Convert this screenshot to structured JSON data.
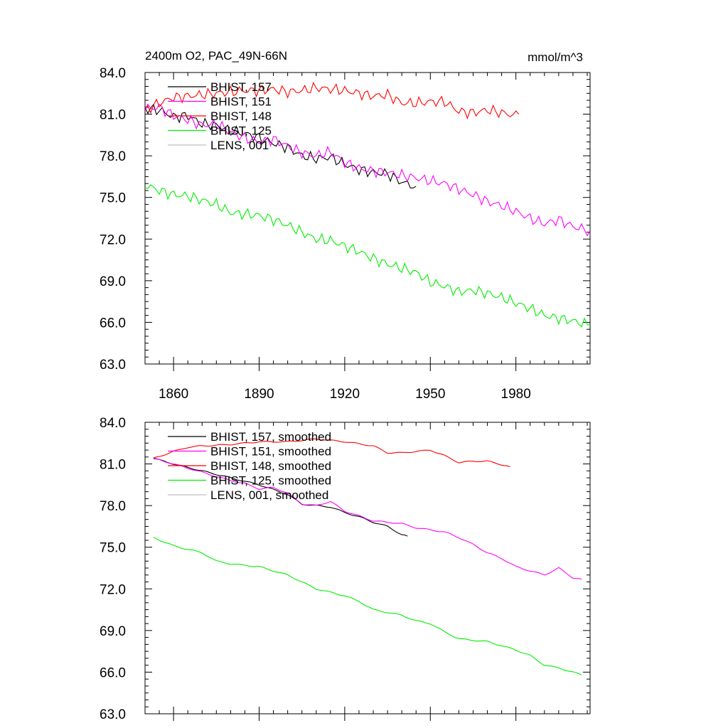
{
  "page": {
    "title_left": "2400m O2, PAC_49N-66N",
    "title_right": "mmol/m^3"
  },
  "colors": {
    "BHIST_157": "#000000",
    "BHIST_151": "#ff00ff",
    "BHIST_148": "#ff0000",
    "BHIST_125": "#00ee00",
    "LENS_001": "#bfbfbf"
  },
  "chart_data": [
    {
      "type": "line",
      "panel": "top",
      "ylim": [
        63.0,
        84.0
      ],
      "xlim": [
        1850,
        2006
      ],
      "y_ticks": [
        "63.0",
        "66.0",
        "69.0",
        "72.0",
        "75.0",
        "78.0",
        "81.0",
        "84.0"
      ],
      "x_ticks": [
        "1860",
        "1890",
        "1920",
        "1950",
        "1980"
      ],
      "legend": [
        "BHIST, 157",
        "BHIST, 151",
        "BHIST, 148",
        "BHIST, 125",
        "LENS, 001"
      ],
      "series": [
        {
          "name": "BHIST, 157",
          "color": "#000000",
          "x_start": 1850,
          "x_end": 1945,
          "points": [
            [
              1850,
              81.4
            ],
            [
              1855,
              81.3
            ],
            [
              1860,
              80.8
            ],
            [
              1865,
              80.9
            ],
            [
              1870,
              80.3
            ],
            [
              1875,
              80.2
            ],
            [
              1880,
              79.8
            ],
            [
              1885,
              79.6
            ],
            [
              1890,
              79.3
            ],
            [
              1895,
              78.9
            ],
            [
              1900,
              78.6
            ],
            [
              1905,
              78.0
            ],
            [
              1910,
              77.8
            ],
            [
              1915,
              77.9
            ],
            [
              1920,
              77.4
            ],
            [
              1925,
              77.0
            ],
            [
              1930,
              76.8
            ],
            [
              1935,
              76.7
            ],
            [
              1940,
              76.1
            ],
            [
              1945,
              75.8
            ]
          ]
        },
        {
          "name": "BHIST, 151",
          "color": "#ff00ff",
          "x_start": 1850,
          "x_end": 2006,
          "points": [
            [
              1850,
              81.4
            ],
            [
              1855,
              81.5
            ],
            [
              1860,
              80.9
            ],
            [
              1865,
              80.6
            ],
            [
              1870,
              80.2
            ],
            [
              1875,
              80.3
            ],
            [
              1880,
              79.7
            ],
            [
              1885,
              79.3
            ],
            [
              1890,
              79.0
            ],
            [
              1895,
              79.2
            ],
            [
              1900,
              78.7
            ],
            [
              1905,
              78.2
            ],
            [
              1910,
              78.0
            ],
            [
              1915,
              78.3
            ],
            [
              1920,
              77.5
            ],
            [
              1925,
              77.1
            ],
            [
              1930,
              76.9
            ],
            [
              1935,
              76.8
            ],
            [
              1940,
              76.6
            ],
            [
              1945,
              76.4
            ],
            [
              1950,
              76.2
            ],
            [
              1955,
              76.0
            ],
            [
              1960,
              75.6
            ],
            [
              1965,
              75.2
            ],
            [
              1970,
              74.7
            ],
            [
              1975,
              74.4
            ],
            [
              1980,
              74.0
            ],
            [
              1985,
              73.5
            ],
            [
              1990,
              73.1
            ],
            [
              1995,
              73.4
            ],
            [
              2000,
              72.9
            ],
            [
              2006,
              72.6
            ]
          ]
        },
        {
          "name": "BHIST, 148",
          "color": "#ff0000",
          "x_start": 1850,
          "x_end": 1981,
          "points": [
            [
              1850,
              81.3
            ],
            [
              1855,
              81.8
            ],
            [
              1860,
              82.2
            ],
            [
              1865,
              82.3
            ],
            [
              1870,
              82.4
            ],
            [
              1875,
              82.5
            ],
            [
              1880,
              82.6
            ],
            [
              1885,
              82.7
            ],
            [
              1890,
              82.7
            ],
            [
              1895,
              82.8
            ],
            [
              1900,
              82.6
            ],
            [
              1905,
              82.7
            ],
            [
              1910,
              82.9
            ],
            [
              1915,
              82.8
            ],
            [
              1920,
              82.7
            ],
            [
              1925,
              82.5
            ],
            [
              1930,
              82.3
            ],
            [
              1935,
              82.4
            ],
            [
              1940,
              81.8
            ],
            [
              1945,
              81.8
            ],
            [
              1950,
              81.9
            ],
            [
              1955,
              81.9
            ],
            [
              1960,
              81.2
            ],
            [
              1965,
              81.1
            ],
            [
              1970,
              81.3
            ],
            [
              1975,
              81.1
            ],
            [
              1980,
              80.9
            ],
            [
              1981,
              81.0
            ]
          ]
        },
        {
          "name": "BHIST, 125",
          "color": "#00ee00",
          "x_start": 1850,
          "x_end": 2006,
          "points": [
            [
              1850,
              75.9
            ],
            [
              1855,
              75.5
            ],
            [
              1860,
              75.2
            ],
            [
              1865,
              75.1
            ],
            [
              1870,
              74.8
            ],
            [
              1875,
              74.5
            ],
            [
              1880,
              73.9
            ],
            [
              1885,
              73.8
            ],
            [
              1890,
              73.7
            ],
            [
              1895,
              73.4
            ],
            [
              1900,
              73.0
            ],
            [
              1905,
              72.5
            ],
            [
              1910,
              72.0
            ],
            [
              1915,
              71.9
            ],
            [
              1920,
              71.5
            ],
            [
              1925,
              71.1
            ],
            [
              1930,
              70.6
            ],
            [
              1935,
              70.2
            ],
            [
              1940,
              69.9
            ],
            [
              1945,
              69.6
            ],
            [
              1950,
              68.9
            ],
            [
              1955,
              68.6
            ],
            [
              1960,
              68.2
            ],
            [
              1965,
              68.3
            ],
            [
              1970,
              68.1
            ],
            [
              1975,
              67.8
            ],
            [
              1980,
              67.4
            ],
            [
              1985,
              67.0
            ],
            [
              1990,
              66.5
            ],
            [
              1995,
              66.3
            ],
            [
              2000,
              66.1
            ],
            [
              2006,
              65.8
            ]
          ]
        },
        {
          "name": "LENS, 001",
          "color": "#bfbfbf",
          "x_start": null,
          "x_end": null,
          "points": []
        }
      ]
    },
    {
      "type": "line",
      "panel": "bottom",
      "ylim": [
        63.0,
        84.0
      ],
      "xlim": [
        1850,
        2006
      ],
      "y_ticks": [
        "63.0",
        "66.0",
        "69.0",
        "72.0",
        "75.0",
        "78.0",
        "81.0",
        "84.0"
      ],
      "legend": [
        "BHIST, 157, smoothed",
        "BHIST, 151, smoothed",
        "BHIST, 148, smoothed",
        "BHIST, 125, smoothed",
        "LENS, 001, smoothed"
      ],
      "series": [
        {
          "name": "BHIST, 157, smoothed",
          "color": "#000000",
          "x_start": 1853,
          "x_end": 1942,
          "points": [
            [
              1853,
              81.4
            ],
            [
              1860,
              81.0
            ],
            [
              1870,
              80.5
            ],
            [
              1880,
              80.0
            ],
            [
              1890,
              79.5
            ],
            [
              1900,
              78.8
            ],
            [
              1905,
              78.1
            ],
            [
              1910,
              78.0
            ],
            [
              1915,
              77.9
            ],
            [
              1920,
              77.5
            ],
            [
              1925,
              77.2
            ],
            [
              1930,
              76.8
            ],
            [
              1935,
              76.5
            ],
            [
              1940,
              75.9
            ],
            [
              1942,
              75.8
            ]
          ]
        },
        {
          "name": "BHIST, 151, smoothed",
          "color": "#ff00ff",
          "x_start": 1853,
          "x_end": 2003,
          "points": [
            [
              1853,
              81.4
            ],
            [
              1860,
              81.0
            ],
            [
              1870,
              80.4
            ],
            [
              1880,
              79.8
            ],
            [
              1885,
              79.6
            ],
            [
              1890,
              79.2
            ],
            [
              1895,
              79.3
            ],
            [
              1900,
              78.9
            ],
            [
              1905,
              78.1
            ],
            [
              1910,
              78.0
            ],
            [
              1915,
              78.3
            ],
            [
              1920,
              77.6
            ],
            [
              1930,
              76.9
            ],
            [
              1940,
              76.7
            ],
            [
              1945,
              76.4
            ],
            [
              1955,
              76.1
            ],
            [
              1960,
              75.7
            ],
            [
              1965,
              75.2
            ],
            [
              1970,
              74.6
            ],
            [
              1975,
              74.2
            ],
            [
              1980,
              73.6
            ],
            [
              1985,
              73.3
            ],
            [
              1990,
              73.0
            ],
            [
              1995,
              73.5
            ],
            [
              2000,
              72.8
            ],
            [
              2003,
              72.7
            ]
          ]
        },
        {
          "name": "BHIST, 148, smoothed",
          "color": "#ff0000",
          "x_start": 1853,
          "x_end": 1978,
          "points": [
            [
              1853,
              81.4
            ],
            [
              1860,
              81.9
            ],
            [
              1865,
              82.2
            ],
            [
              1870,
              82.3
            ],
            [
              1880,
              82.4
            ],
            [
              1890,
              82.6
            ],
            [
              1900,
              82.6
            ],
            [
              1910,
              82.8
            ],
            [
              1920,
              82.6
            ],
            [
              1930,
              82.3
            ],
            [
              1935,
              81.8
            ],
            [
              1940,
              81.8
            ],
            [
              1950,
              82.0
            ],
            [
              1955,
              81.6
            ],
            [
              1960,
              81.1
            ],
            [
              1965,
              81.2
            ],
            [
              1970,
              81.2
            ],
            [
              1978,
              80.8
            ]
          ]
        },
        {
          "name": "BHIST, 125, smoothed",
          "color": "#00ee00",
          "x_start": 1853,
          "x_end": 2003,
          "points": [
            [
              1853,
              75.7
            ],
            [
              1860,
              75.1
            ],
            [
              1870,
              74.6
            ],
            [
              1875,
              74.0
            ],
            [
              1880,
              73.8
            ],
            [
              1890,
              73.6
            ],
            [
              1900,
              73.0
            ],
            [
              1905,
              72.5
            ],
            [
              1910,
              72.0
            ],
            [
              1920,
              71.5
            ],
            [
              1925,
              71.1
            ],
            [
              1930,
              70.5
            ],
            [
              1940,
              70.1
            ],
            [
              1945,
              69.7
            ],
            [
              1950,
              69.5
            ],
            [
              1955,
              68.9
            ],
            [
              1960,
              68.4
            ],
            [
              1965,
              68.3
            ],
            [
              1970,
              68.2
            ],
            [
              1980,
              67.6
            ],
            [
              1985,
              67.2
            ],
            [
              1990,
              66.5
            ],
            [
              1995,
              66.3
            ],
            [
              2000,
              66.0
            ],
            [
              2003,
              65.8
            ]
          ]
        },
        {
          "name": "LENS, 001, smoothed",
          "color": "#bfbfbf",
          "x_start": null,
          "x_end": null,
          "points": []
        }
      ]
    }
  ]
}
